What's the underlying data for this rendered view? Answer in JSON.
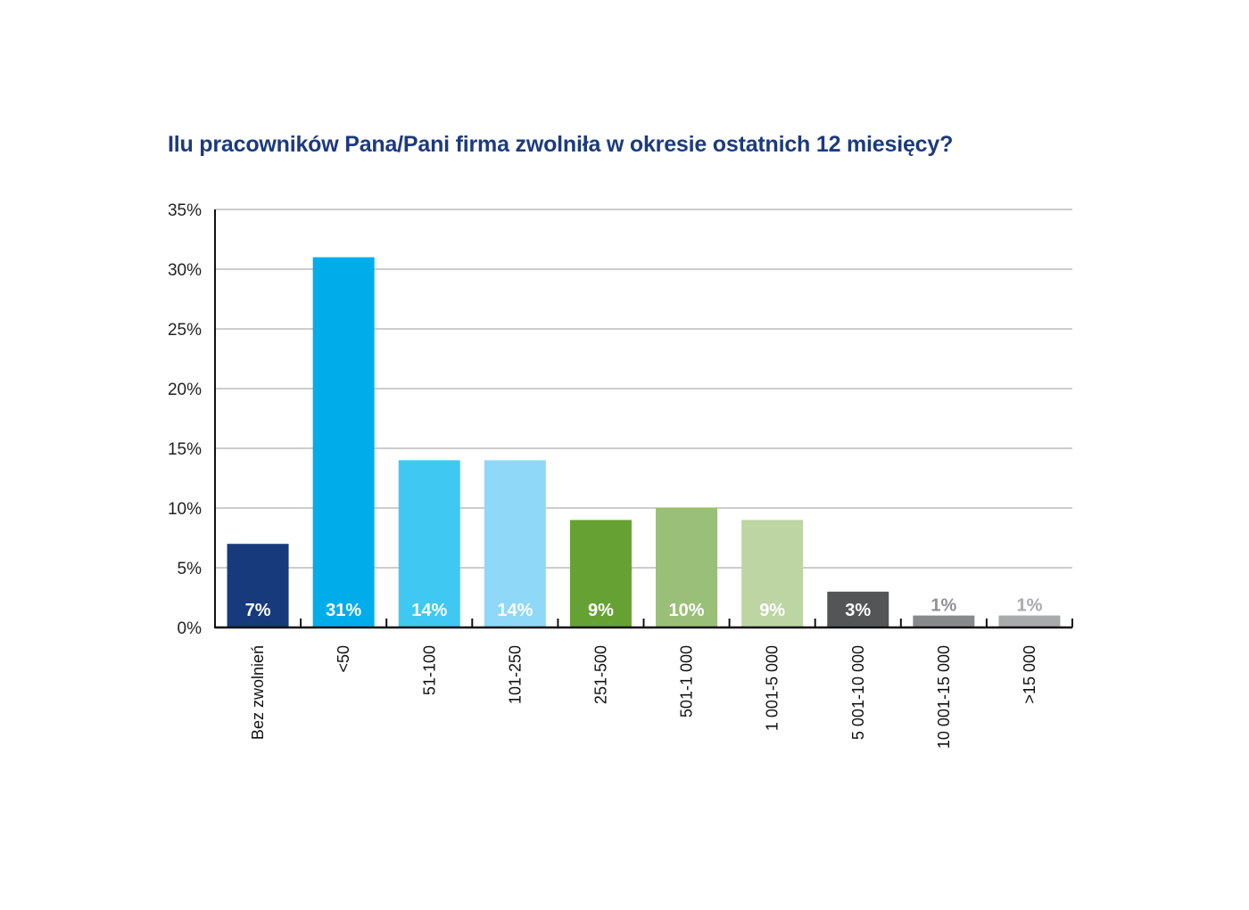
{
  "chart_data": {
    "type": "bar",
    "title": "Ilu pracowników Pana/Pani firma zwolniła w okresie ostatnich 12 miesięcy?",
    "xlabel": "",
    "ylabel": "",
    "ylim": [
      0,
      35
    ],
    "y_ticks": [
      0,
      5,
      10,
      15,
      20,
      25,
      30,
      35
    ],
    "y_tick_labels": [
      "0%",
      "5%",
      "10%",
      "15%",
      "20%",
      "25%",
      "30%",
      "35%"
    ],
    "grid": true,
    "categories": [
      "Bez zwolnień",
      "<50",
      "51-100",
      "101-250",
      "251-500",
      "501-1 000",
      "1 001-5 000",
      "5 001-10 000",
      "10 001-15 000",
      ">15 000"
    ],
    "values": [
      7,
      31,
      14,
      14,
      9,
      10,
      9,
      3,
      1,
      1
    ],
    "data_labels": [
      "7%",
      "31%",
      "14%",
      "14%",
      "9%",
      "10%",
      "9%",
      "3%",
      "1%",
      "1%"
    ],
    "colors": [
      "#163a7c",
      "#00adeb",
      "#3fc8f2",
      "#8fd8f7",
      "#66a134",
      "#9abf78",
      "#bcd5a2",
      "#545557",
      "#88898b",
      "#a9aaac"
    ],
    "label_colors": [
      "#ffffff",
      "#ffffff",
      "#ffffff",
      "#ffffff",
      "#ffffff",
      "#ffffff",
      "#ffffff",
      "#ffffff",
      "#909193",
      "#a9aaac"
    ]
  }
}
